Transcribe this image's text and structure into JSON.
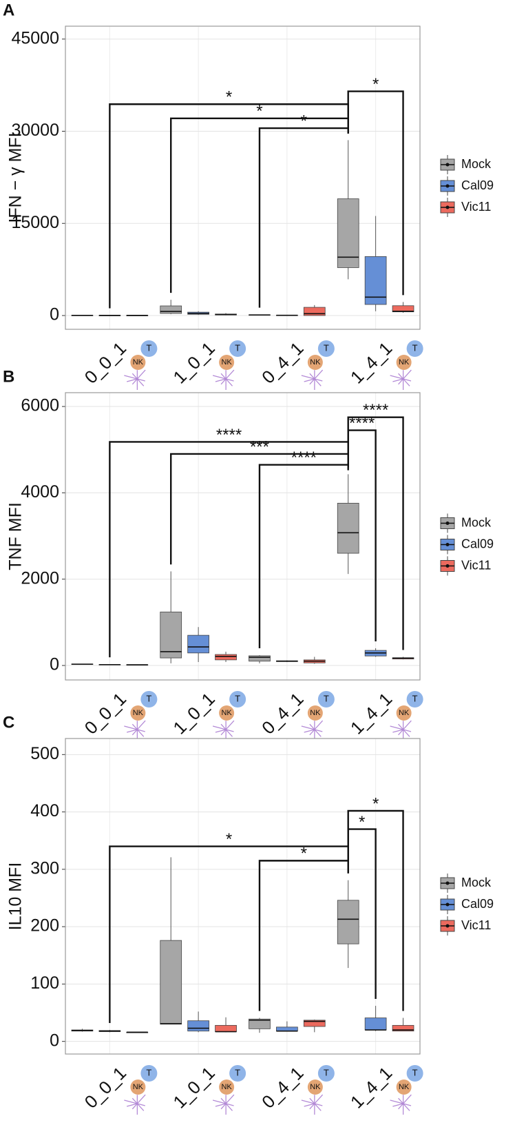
{
  "chart_data": [
    {
      "type": "box",
      "panel_label": "A",
      "y_label": "IFN − γ MFI",
      "categories": [
        "0_0_1",
        "1_0_1",
        "0_4_1",
        "1_4_1"
      ],
      "cell_icons": [
        "T",
        "NK"
      ],
      "ylim": [
        -2240,
        47100
      ],
      "yticks": [
        0,
        15000,
        30000,
        45000
      ],
      "grid": true,
      "series": [
        {
          "name": "Mock",
          "color": "#a6a6a6",
          "min": [
            0,
            220,
            50,
            5900
          ],
          "q1": [
            10,
            340,
            80,
            7800
          ],
          "median": [
            30,
            670,
            100,
            9500
          ],
          "q3": [
            50,
            1570,
            130,
            19000
          ],
          "max": [
            80,
            2570,
            160,
            28550
          ]
        },
        {
          "name": "Cal09",
          "color": "#658fd6",
          "min": [
            0,
            100,
            0,
            700
          ],
          "q1": [
            10,
            200,
            20,
            1800
          ],
          "median": [
            20,
            350,
            40,
            3000
          ],
          "q3": [
            40,
            550,
            70,
            9600
          ],
          "max": [
            60,
            700,
            100,
            16200
          ]
        },
        {
          "name": "Vic11",
          "color": "#ec6a5e",
          "min": [
            0,
            50,
            0,
            450
          ],
          "q1": [
            10,
            100,
            0,
            600
          ],
          "median": [
            20,
            150,
            300,
            700
          ],
          "q3": [
            40,
            250,
            1340,
            1600
          ],
          "max": [
            60,
            400,
            1700,
            2200
          ]
        }
      ],
      "comparisons": [
        {
          "label": "*",
          "y": 36500,
          "from": [
            3,
            0
          ],
          "to": [
            3,
            2
          ]
        },
        {
          "label": "*",
          "y": 34400,
          "from": [
            0,
            1
          ],
          "to": [
            3,
            0
          ]
        },
        {
          "label": "*",
          "y": 32100,
          "from": [
            1,
            0
          ],
          "to": [
            3,
            0
          ]
        },
        {
          "label": "*",
          "y": 30500,
          "from": [
            2,
            0
          ],
          "to": [
            3,
            0
          ]
        }
      ]
    },
    {
      "type": "box",
      "panel_label": "B",
      "y_label": "TNF MFI",
      "categories": [
        "0_0_1",
        "1_0_1",
        "0_4_1",
        "1_4_1"
      ],
      "cell_icons": [
        "T",
        "NK"
      ],
      "ylim": [
        -335,
        6320
      ],
      "yticks": [
        0,
        2000,
        4000,
        6000
      ],
      "grid": true,
      "series": [
        {
          "name": "Mock",
          "color": "#a6a6a6",
          "min": [
            20,
            50,
            50,
            2120
          ],
          "q1": [
            25,
            175,
            100,
            2600
          ],
          "median": [
            30,
            320,
            190,
            3075
          ],
          "q3": [
            35,
            1240,
            225,
            3760
          ],
          "max": [
            40,
            2180,
            240,
            4430
          ]
        },
        {
          "name": "Cal09",
          "color": "#658fd6",
          "min": [
            10,
            80,
            80,
            200
          ],
          "q1": [
            15,
            290,
            90,
            220
          ],
          "median": [
            20,
            430,
            100,
            290
          ],
          "q3": [
            25,
            700,
            110,
            350
          ],
          "max": [
            30,
            890,
            120,
            400
          ]
        },
        {
          "name": "Vic11",
          "color": "#ec6a5e",
          "min": [
            5,
            80,
            40,
            140
          ],
          "q1": [
            10,
            130,
            60,
            150
          ],
          "median": [
            15,
            210,
            100,
            170
          ],
          "q3": [
            20,
            255,
            130,
            180
          ],
          "max": [
            25,
            320,
            200,
            200
          ]
        }
      ],
      "comparisons": [
        {
          "label": "****",
          "y": 5750,
          "from": [
            3,
            0
          ],
          "to": [
            3,
            2
          ]
        },
        {
          "label": "****",
          "y": 5450,
          "from": [
            3,
            0
          ],
          "to": [
            3,
            1
          ]
        },
        {
          "label": "****",
          "y": 5180,
          "from": [
            0,
            1
          ],
          "to": [
            3,
            0
          ]
        },
        {
          "label": "***",
          "y": 4900,
          "from": [
            1,
            0
          ],
          "to": [
            3,
            0
          ]
        },
        {
          "label": "****",
          "y": 4650,
          "from": [
            2,
            0
          ],
          "to": [
            3,
            0
          ]
        }
      ]
    },
    {
      "type": "box",
      "panel_label": "C",
      "y_label": "IL10 MFI",
      "categories": [
        "0_0_1",
        "1_0_1",
        "0_4_1",
        "1_4_1"
      ],
      "cell_icons": [
        "T",
        "NK"
      ],
      "ylim": [
        -22,
        528
      ],
      "yticks": [
        0,
        100,
        200,
        300,
        400,
        500
      ],
      "grid": true,
      "series": [
        {
          "name": "Mock",
          "color": "#a6a6a6",
          "min": [
            17,
            30,
            15,
            128
          ],
          "q1": [
            18,
            30,
            22,
            170
          ],
          "median": [
            19,
            31,
            37,
            213
          ],
          "q3": [
            20,
            176,
            39,
            246
          ],
          "max": [
            22,
            321,
            41,
            281
          ]
        },
        {
          "name": "Cal09",
          "color": "#658fd6",
          "min": [
            16,
            16,
            17,
            18
          ],
          "q1": [
            17,
            18,
            18,
            20
          ],
          "median": [
            18,
            23,
            18,
            20
          ],
          "q3": [
            19,
            36,
            25,
            41
          ],
          "max": [
            20,
            52,
            35,
            62
          ]
        },
        {
          "name": "Vic11",
          "color": "#ec6a5e",
          "min": [
            15,
            16,
            16,
            18
          ],
          "q1": [
            15,
            17,
            26,
            18
          ],
          "median": [
            16,
            17,
            35,
            20
          ],
          "q3": [
            16,
            28,
            37,
            28
          ],
          "max": [
            17,
            42,
            38,
            41
          ]
        }
      ],
      "comparisons": [
        {
          "label": "*",
          "y": 402,
          "from": [
            3,
            0
          ],
          "to": [
            3,
            2
          ]
        },
        {
          "label": "*",
          "y": 370,
          "from": [
            3,
            0
          ],
          "to": [
            3,
            1
          ]
        },
        {
          "label": "*",
          "y": 340,
          "from": [
            0,
            1
          ],
          "to": [
            3,
            0
          ]
        },
        {
          "label": "*",
          "y": 315,
          "from": [
            2,
            0
          ],
          "to": [
            3,
            0
          ]
        }
      ]
    }
  ]
}
